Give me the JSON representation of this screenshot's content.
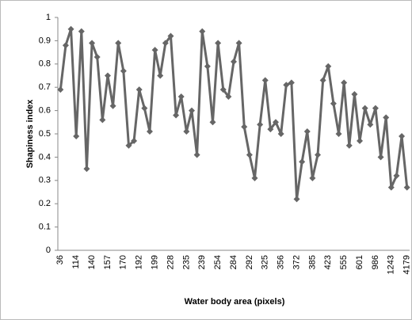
{
  "chart_data": {
    "type": "line",
    "x_label": "Water body area (pixels)",
    "y_label": "Shapiness index",
    "categories": [
      "36",
      null,
      null,
      "114",
      null,
      null,
      "140",
      null,
      null,
      "157",
      null,
      null,
      "170",
      null,
      null,
      "192",
      null,
      null,
      "199",
      null,
      null,
      "228",
      null,
      null,
      "235",
      null,
      null,
      "239",
      null,
      null,
      "254",
      null,
      null,
      "284",
      null,
      null,
      "292",
      null,
      null,
      "325",
      null,
      null,
      "356",
      null,
      null,
      "372",
      null,
      null,
      "385",
      null,
      null,
      "423",
      null,
      null,
      "555",
      null,
      null,
      "601",
      null,
      null,
      "986",
      null,
      null,
      "1243",
      null,
      null,
      "4179"
    ],
    "values": [
      0.69,
      0.88,
      0.95,
      0.49,
      0.94,
      0.35,
      0.89,
      0.83,
      0.56,
      0.75,
      0.62,
      0.89,
      0.77,
      0.45,
      0.47,
      0.69,
      0.61,
      0.51,
      0.86,
      0.75,
      0.89,
      0.92,
      0.58,
      0.66,
      0.51,
      0.6,
      0.41,
      0.94,
      0.79,
      0.55,
      0.89,
      0.69,
      0.66,
      0.81,
      0.89,
      0.53,
      0.41,
      0.31,
      0.54,
      0.73,
      0.52,
      0.55,
      0.5,
      0.71,
      0.72,
      0.22,
      0.38,
      0.51,
      0.31,
      0.41,
      0.73,
      0.79,
      0.63,
      0.5,
      0.72,
      0.45,
      0.67,
      0.47,
      0.61,
      0.54,
      0.61,
      0.4,
      0.57,
      0.27,
      0.32,
      0.49,
      0.27
    ],
    "color": "#666666",
    "ylim": [
      0,
      1
    ],
    "yticks": [
      0,
      0.1,
      0.2,
      0.3,
      0.4,
      0.5,
      0.6,
      0.7,
      0.8,
      0.9,
      1
    ],
    "grid": false
  }
}
